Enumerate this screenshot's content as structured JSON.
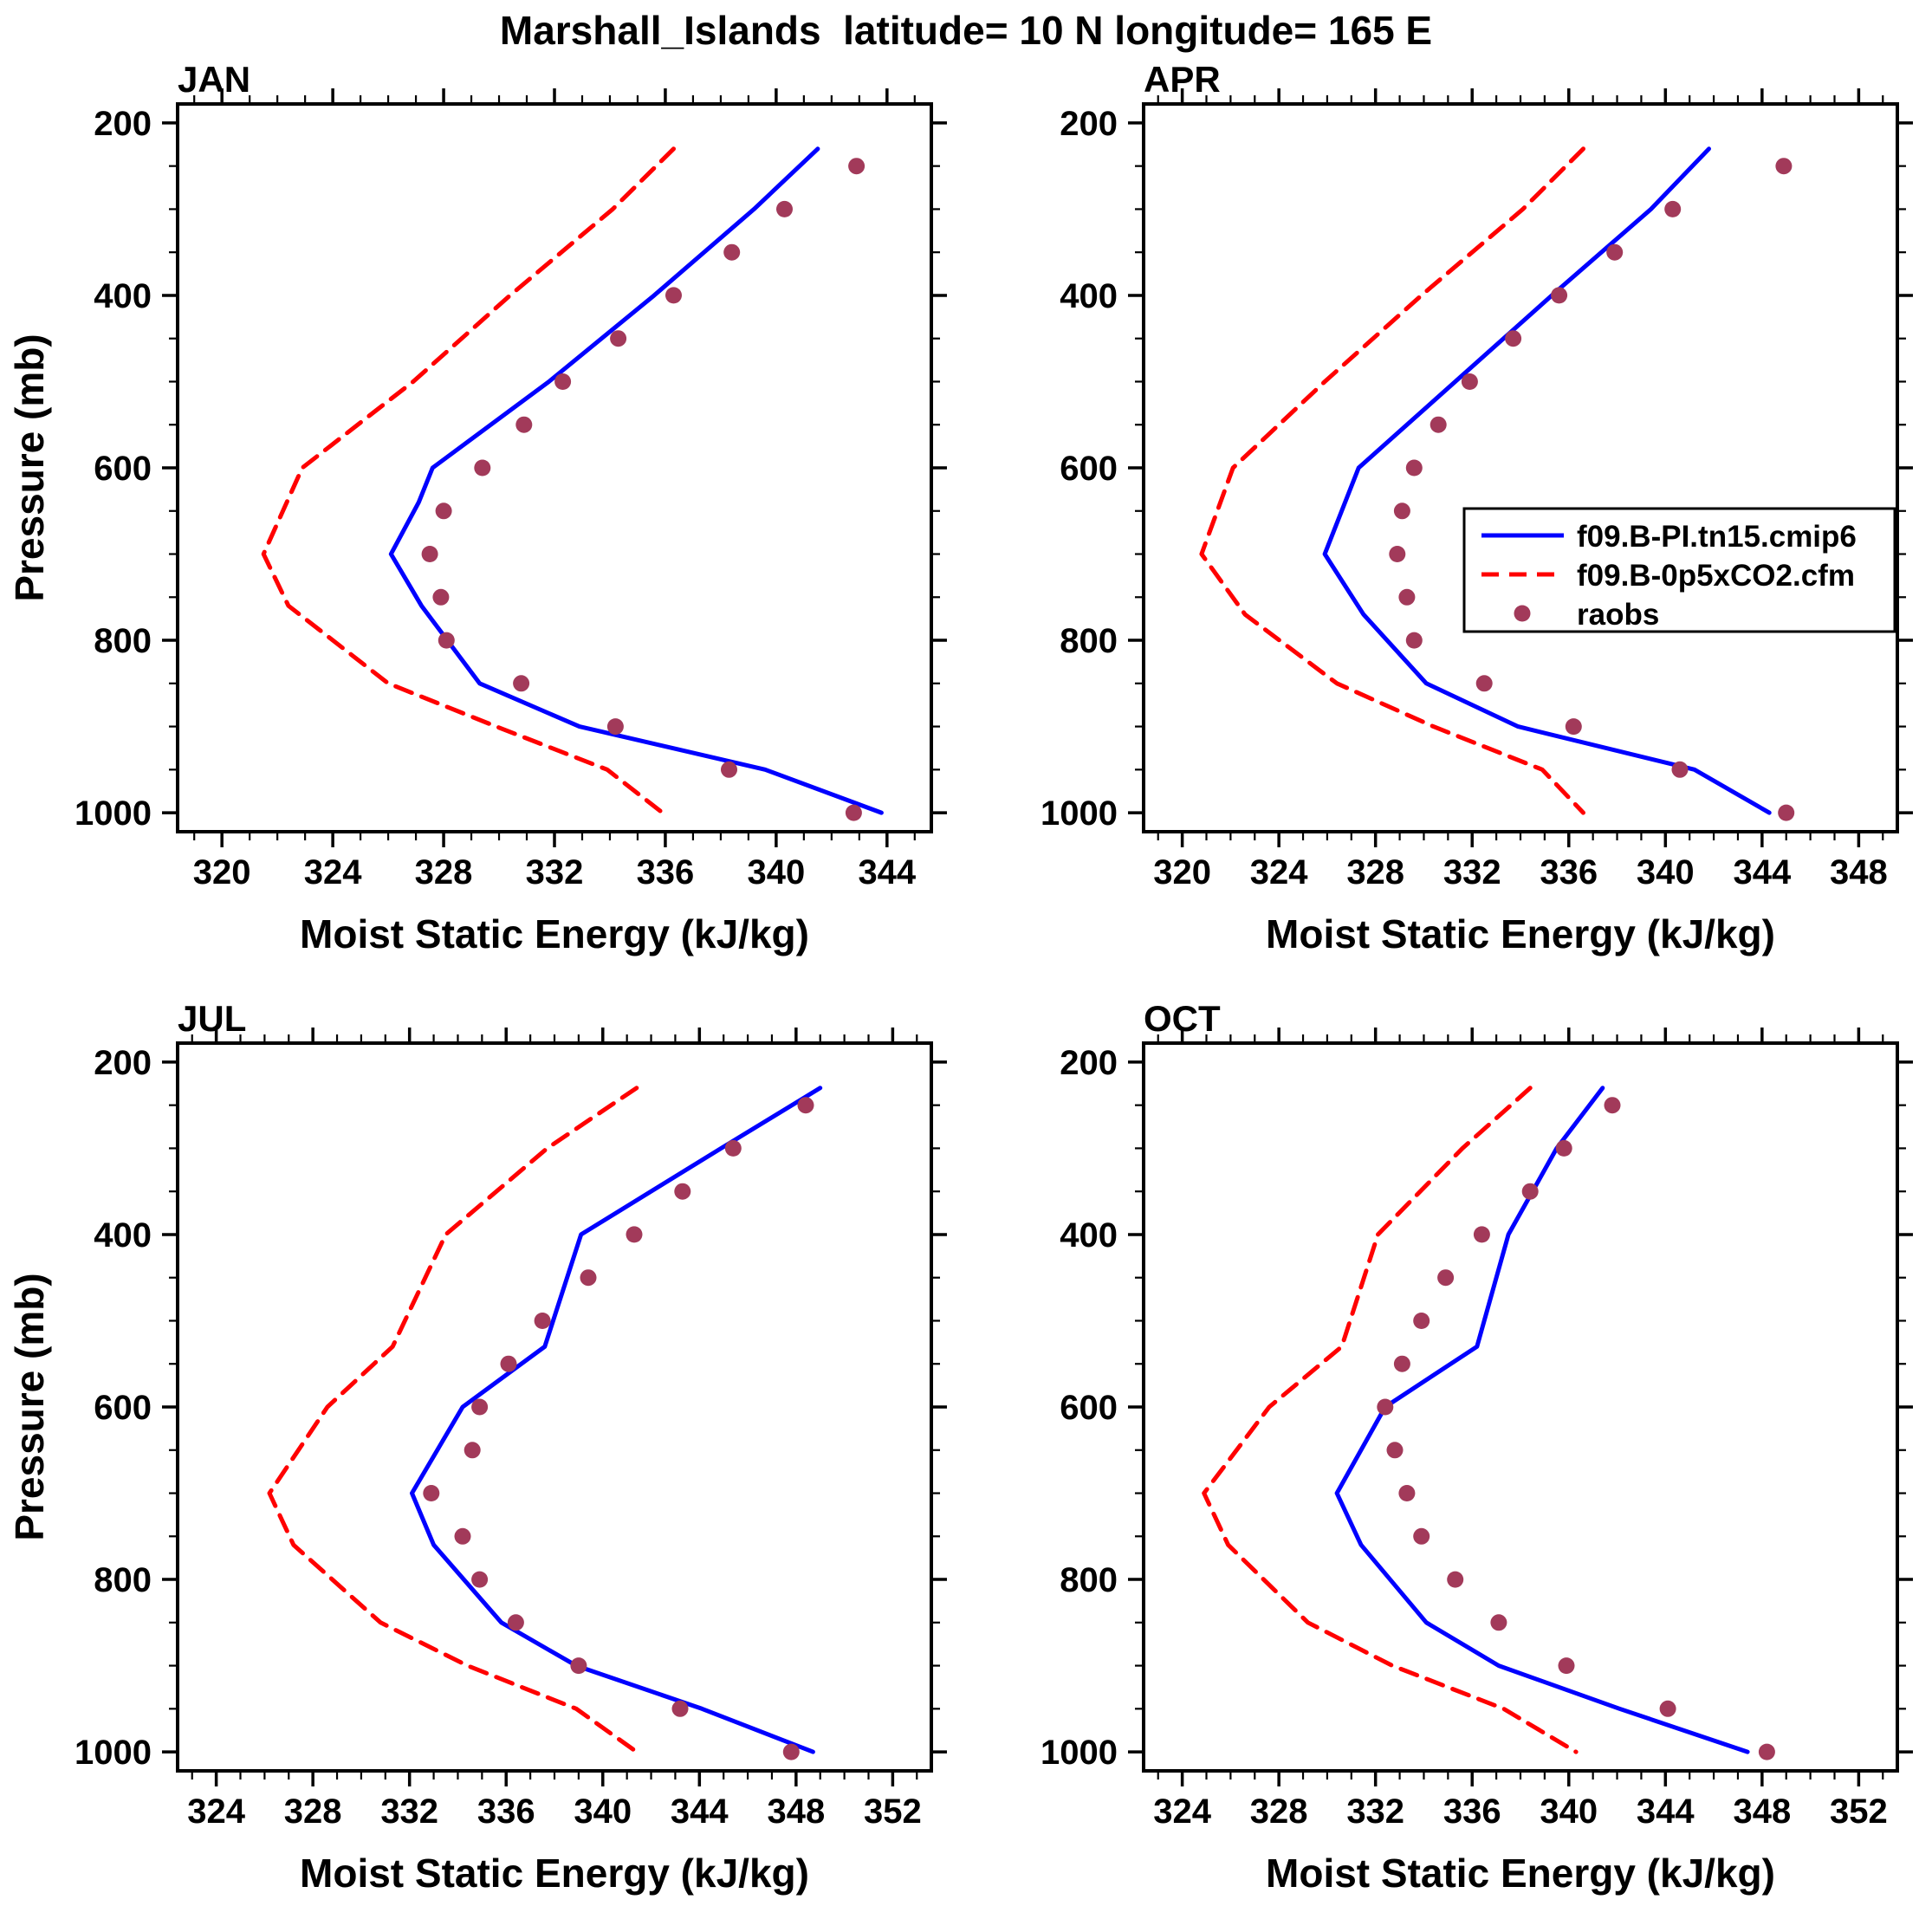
{
  "title": "Marshall_Islands  latitude= 10 N longitude= 165 E",
  "axis": {
    "xlabel": "Moist Static Energy (kJ/kg)",
    "ylabel": "Pressure (mb)"
  },
  "colors": {
    "model_line": "#0000ff",
    "co2_line": "#ff0000",
    "raobs_dot": "#a23a5a",
    "frame": "#000000"
  },
  "legend": {
    "panel": "APR",
    "position": "middle-right",
    "items": [
      {
        "label": "f09.B-PI.tn15.cmip6",
        "style": "blue-solid-line"
      },
      {
        "label": "f09.B-0p5xCO2.cfm",
        "style": "red-dashed-line"
      },
      {
        "label": "raobs",
        "style": "maroon-dot"
      }
    ]
  },
  "chart_data": [
    {
      "type": "line",
      "title": "JAN",
      "xlabel": "Moist Static Energy (kJ/kg)",
      "ylabel": "Pressure (mb)",
      "xlim": [
        320,
        344
      ],
      "xticks": [
        320,
        324,
        328,
        332,
        336,
        340,
        344
      ],
      "x_minor_step": 1,
      "ylim": [
        200,
        1000
      ],
      "yticks": [
        200,
        400,
        600,
        800,
        1000
      ],
      "y_minor_step": 50,
      "y_reversed": true,
      "show_legend": false,
      "series": [
        {
          "name": "f09.B-PI.tn15.cmip6",
          "style": "solid",
          "color_key": "model_line",
          "pressure_mb": [
            230,
            300,
            400,
            500,
            600,
            640,
            700,
            760,
            850,
            900,
            950,
            1000
          ],
          "mse_kj_kg": [
            341.5,
            339.2,
            335.6,
            331.8,
            327.6,
            327.1,
            326.1,
            327.2,
            329.3,
            332.9,
            339.6,
            343.8
          ]
        },
        {
          "name": "f09.B-0p5xCO2.cfm",
          "style": "dashed",
          "color_key": "co2_line",
          "pressure_mb": [
            230,
            300,
            400,
            500,
            600,
            700,
            760,
            850,
            900,
            950,
            1000
          ],
          "mse_kj_kg": [
            336.3,
            334.1,
            330.4,
            326.9,
            322.9,
            321.5,
            322.4,
            326.0,
            329.9,
            333.9,
            335.9
          ]
        },
        {
          "name": "raobs",
          "style": "dots",
          "color_key": "raobs_dot",
          "pressure_mb": [
            250,
            300,
            350,
            400,
            450,
            500,
            550,
            600,
            650,
            700,
            750,
            800,
            850,
            900,
            950,
            1000
          ],
          "mse_kj_kg": [
            342.9,
            340.3,
            338.4,
            336.3,
            334.3,
            332.3,
            330.9,
            329.4,
            328.0,
            327.5,
            327.9,
            328.1,
            330.8,
            334.2,
            338.3,
            342.8
          ]
        }
      ]
    },
    {
      "type": "line",
      "title": "APR",
      "xlabel": "Moist Static Energy (kJ/kg)",
      "ylabel": "Pressure (mb)",
      "xlim": [
        320,
        348
      ],
      "xticks": [
        320,
        324,
        328,
        332,
        336,
        340,
        344,
        348
      ],
      "x_minor_step": 1,
      "ylim": [
        200,
        1000
      ],
      "yticks": [
        200,
        400,
        600,
        800,
        1000
      ],
      "y_minor_step": 50,
      "y_reversed": true,
      "show_legend": true,
      "series": [
        {
          "name": "f09.B-PI.tn15.cmip6",
          "style": "solid",
          "color_key": "model_line",
          "pressure_mb": [
            230,
            300,
            400,
            500,
            600,
            700,
            770,
            850,
            900,
            950,
            1000
          ],
          "mse_kj_kg": [
            341.8,
            339.4,
            335.3,
            331.3,
            327.3,
            325.9,
            327.5,
            330.1,
            333.9,
            341.2,
            344.3
          ]
        },
        {
          "name": "f09.B-0p5xCO2.cfm",
          "style": "dashed",
          "color_key": "co2_line",
          "pressure_mb": [
            230,
            300,
            400,
            500,
            600,
            700,
            770,
            850,
            900,
            950,
            1000
          ],
          "mse_kj_kg": [
            336.6,
            334.1,
            329.9,
            325.9,
            322.1,
            320.8,
            322.6,
            326.4,
            330.4,
            334.9,
            336.6
          ]
        },
        {
          "name": "raobs",
          "style": "dots",
          "color_key": "raobs_dot",
          "pressure_mb": [
            250,
            300,
            350,
            400,
            450,
            500,
            550,
            600,
            650,
            700,
            750,
            800,
            850,
            900,
            950,
            1000
          ],
          "mse_kj_kg": [
            344.9,
            340.3,
            337.9,
            335.6,
            333.7,
            331.9,
            330.6,
            329.6,
            329.1,
            328.9,
            329.3,
            329.6,
            332.5,
            336.2,
            340.6,
            345.0
          ]
        }
      ]
    },
    {
      "type": "line",
      "title": "JUL",
      "xlabel": "Moist Static Energy (kJ/kg)",
      "ylabel": "Pressure (mb)",
      "xlim": [
        324,
        352
      ],
      "xticks": [
        324,
        328,
        332,
        336,
        340,
        344,
        348,
        352
      ],
      "x_minor_step": 1,
      "ylim": [
        200,
        1000
      ],
      "yticks": [
        200,
        400,
        600,
        800,
        1000
      ],
      "y_minor_step": 50,
      "y_reversed": true,
      "show_legend": false,
      "series": [
        {
          "name": "f09.B-PI.tn15.cmip6",
          "style": "solid",
          "color_key": "model_line",
          "pressure_mb": [
            230,
            300,
            400,
            530,
            600,
            700,
            760,
            850,
            900,
            950,
            1000
          ],
          "mse_kj_kg": [
            349.0,
            344.9,
            339.1,
            337.6,
            334.2,
            332.1,
            333.0,
            335.8,
            338.9,
            344.1,
            348.7
          ]
        },
        {
          "name": "f09.B-0p5xCO2.cfm",
          "style": "dashed",
          "color_key": "co2_line",
          "pressure_mb": [
            230,
            300,
            400,
            530,
            600,
            700,
            760,
            850,
            900,
            950,
            1000
          ],
          "mse_kj_kg": [
            341.4,
            337.7,
            333.5,
            331.3,
            328.6,
            326.2,
            327.2,
            330.8,
            334.4,
            338.9,
            341.4
          ]
        },
        {
          "name": "raobs",
          "style": "dots",
          "color_key": "raobs_dot",
          "pressure_mb": [
            250,
            300,
            350,
            400,
            450,
            500,
            550,
            600,
            650,
            700,
            750,
            800,
            850,
            900,
            950,
            1000
          ],
          "mse_kj_kg": [
            348.4,
            345.4,
            343.3,
            341.3,
            339.4,
            337.5,
            336.1,
            334.9,
            334.6,
            332.9,
            334.2,
            334.9,
            336.4,
            339.0,
            343.2,
            347.8
          ]
        }
      ]
    },
    {
      "type": "line",
      "title": "OCT",
      "xlabel": "Moist Static Energy (kJ/kg)",
      "ylabel": "Pressure (mb)",
      "xlim": [
        324,
        352
      ],
      "xticks": [
        324,
        328,
        332,
        336,
        340,
        344,
        348,
        352
      ],
      "x_minor_step": 1,
      "ylim": [
        200,
        1000
      ],
      "yticks": [
        200,
        400,
        600,
        800,
        1000
      ],
      "y_minor_step": 50,
      "y_reversed": true,
      "show_legend": false,
      "series": [
        {
          "name": "f09.B-PI.tn15.cmip6",
          "style": "solid",
          "color_key": "model_line",
          "pressure_mb": [
            230,
            300,
            400,
            530,
            600,
            700,
            760,
            850,
            900,
            950,
            1000
          ],
          "mse_kj_kg": [
            341.4,
            339.5,
            337.5,
            336.2,
            332.4,
            330.4,
            331.4,
            334.1,
            337.1,
            342.1,
            347.4
          ]
        },
        {
          "name": "f09.B-0p5xCO2.cfm",
          "style": "dashed",
          "color_key": "co2_line",
          "pressure_mb": [
            230,
            300,
            400,
            530,
            600,
            700,
            760,
            850,
            900,
            950,
            1000
          ],
          "mse_kj_kg": [
            338.4,
            335.6,
            332.1,
            330.6,
            327.6,
            324.9,
            325.9,
            329.2,
            332.7,
            337.3,
            340.3
          ]
        },
        {
          "name": "raobs",
          "style": "dots",
          "color_key": "raobs_dot",
          "pressure_mb": [
            250,
            300,
            350,
            400,
            450,
            500,
            550,
            600,
            650,
            700,
            750,
            800,
            850,
            900,
            950,
            1000
          ],
          "mse_kj_kg": [
            341.8,
            339.8,
            338.4,
            336.4,
            334.9,
            333.9,
            333.1,
            332.4,
            332.8,
            333.3,
            333.9,
            335.3,
            337.1,
            339.9,
            344.1,
            348.2
          ]
        }
      ]
    }
  ]
}
